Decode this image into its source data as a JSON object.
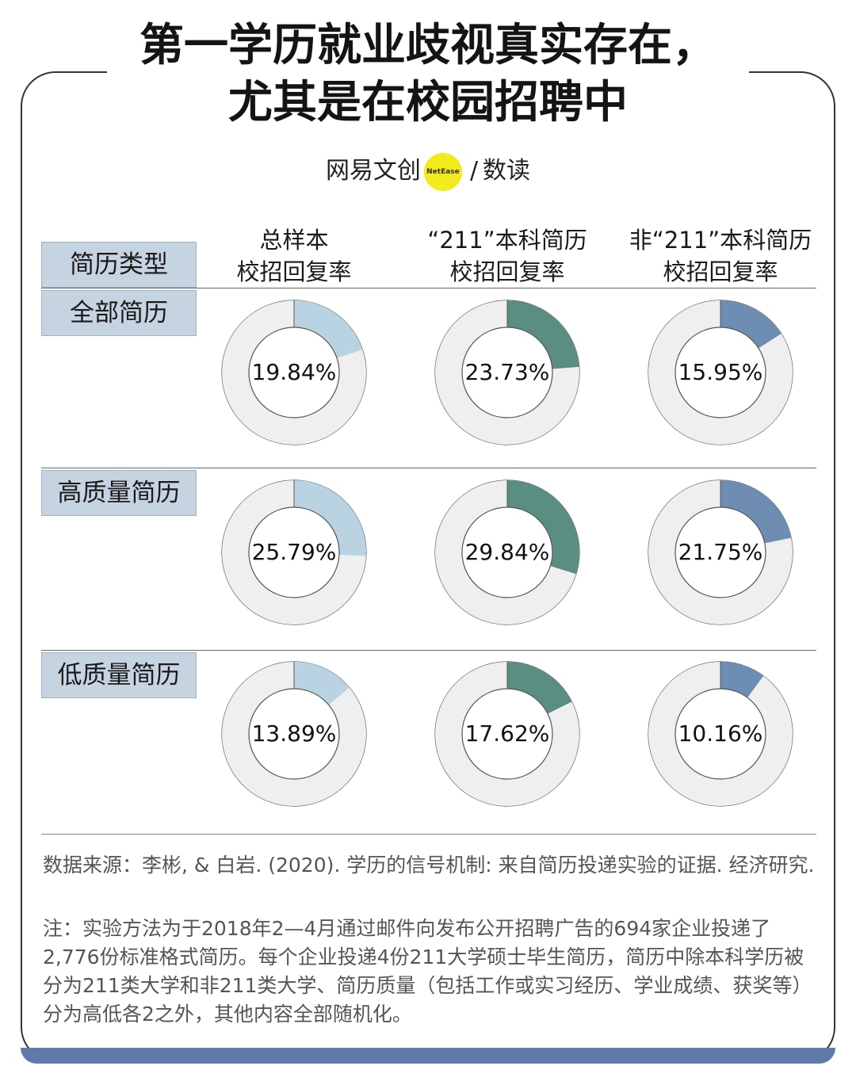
{
  "title": {
    "line1": "第一学历就业歧视真实存在，",
    "line2": "尤其是在校园招聘中"
  },
  "logo": {
    "left": "网易文创",
    "badge": "NetEase",
    "sep": "/",
    "right": "数读"
  },
  "header": {
    "row_type_label": "简历类型",
    "columns": [
      {
        "line1": "总样本",
        "line2": "校招回复率"
      },
      {
        "line1": "“211”本科简历",
        "line2": "校招回复率"
      },
      {
        "line1": "非“211”本科简历",
        "line2": "校招回复率"
      }
    ]
  },
  "colors": {
    "total": "#b9d3e3",
    "c211": "#5b8e83",
    "non211": "#6d8db3",
    "track": "#efefef",
    "label_bg": "#c6d4e1",
    "footer_bar": "#5f7aa8"
  },
  "chart_data": {
    "type": "donut",
    "unit": "%",
    "categories": [
      "全部简历",
      "高质量简历",
      "低质量简历"
    ],
    "series": [
      {
        "name": "总样本 校招回复率",
        "values": [
          19.84,
          25.79,
          13.89
        ]
      },
      {
        "name": "“211”本科简历 校招回复率",
        "values": [
          23.73,
          29.84,
          17.62
        ]
      },
      {
        "name": "非“211”本科简历 校招回复率",
        "values": [
          15.95,
          21.75,
          10.16
        ]
      }
    ],
    "labels": [
      [
        "19.84%",
        "23.73%",
        "15.95%"
      ],
      [
        "25.79%",
        "29.84%",
        "21.75%"
      ],
      [
        "13.89%",
        "17.62%",
        "10.16%"
      ]
    ]
  },
  "notes": {
    "source": "数据来源：李彬, & 白岩. (2020). 学历的信号机制: 来自简历投递实验的证据. 经济研究.",
    "note": "注：实验方法为于2018年2—4月通过邮件向发布公开招聘广告的694家企业投递了2,776份标准格式简历。每个企业投递4份211大学硕士毕生简历，简历中除本科学历被分为211类大学和非211类大学、简历质量（包括工作或实习经历、学业成绩、获奖等）分为高低各2之外，其他内容全部随机化。"
  }
}
